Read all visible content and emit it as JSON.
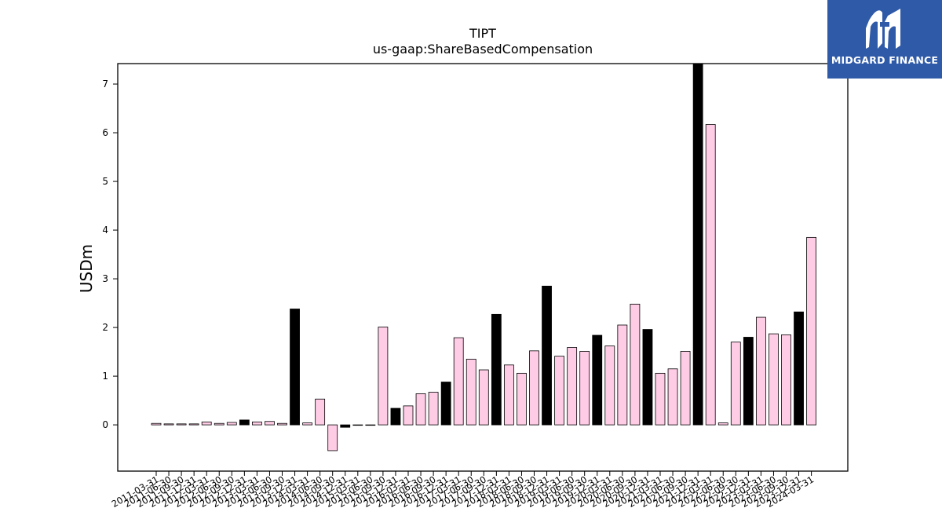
{
  "logo": {
    "text": "MIDGARD FINANCE",
    "background": "#2f5aa8"
  },
  "colors": {
    "bar_pink": "#ffcce6",
    "bar_black": "#000000",
    "edge": "#000000"
  },
  "chart_data": {
    "type": "bar",
    "title": "TIPT",
    "subtitle": "us-gaap:ShareBasedCompensation",
    "ylabel": "USDm",
    "xlabel": "",
    "ylim": [
      -0.95,
      7.42
    ],
    "yticks": [
      0,
      1,
      2,
      3,
      4,
      5,
      6,
      7
    ],
    "categories": [
      "2011-03-31",
      "2011-06-30",
      "2011-09-30",
      "2011-12-31",
      "2012-03-31",
      "2012-06-30",
      "2012-09-30",
      "2012-12-31",
      "2013-03-31",
      "2013-06-30",
      "2013-09-30",
      "2013-12-31",
      "2014-03-31",
      "2014-06-30",
      "2014-09-30",
      "2014-12-31",
      "2015-03-31",
      "2015-06-30",
      "2015-09-30",
      "2015-12-31",
      "2016-03-31",
      "2016-06-30",
      "2016-09-30",
      "2016-12-31",
      "2017-03-31",
      "2017-06-30",
      "2017-09-30",
      "2017-12-31",
      "2018-03-31",
      "2018-06-30",
      "2018-09-30",
      "2018-12-31",
      "2019-03-31",
      "2019-06-30",
      "2019-09-30",
      "2019-12-31",
      "2020-03-31",
      "2020-06-30",
      "2020-09-30",
      "2020-12-31",
      "2021-03-31",
      "2021-06-30",
      "2021-09-30",
      "2021-12-31",
      "2022-03-31",
      "2022-06-30",
      "2022-09-30",
      "2022-12-31",
      "2023-03-31",
      "2023-06-30",
      "2023-09-30",
      "2023-12-31",
      "2024-03-31"
    ],
    "values": [
      0.03,
      0.02,
      0.02,
      0.02,
      0.06,
      0.03,
      0.05,
      0.1,
      0.06,
      0.07,
      0.03,
      2.38,
      0.04,
      0.53,
      -0.53,
      -0.05,
      0.0,
      0.0,
      2.01,
      0.34,
      0.39,
      0.64,
      0.67,
      0.88,
      1.79,
      1.35,
      1.13,
      2.27,
      1.23,
      1.06,
      1.52,
      2.85,
      1.41,
      1.59,
      1.51,
      1.84,
      1.62,
      2.05,
      2.48,
      1.96,
      1.06,
      1.15,
      1.51,
      7.42,
      6.17,
      0.04,
      1.7,
      1.8,
      2.21,
      1.87,
      1.85,
      2.32,
      3.85
    ],
    "highlight": [
      false,
      false,
      false,
      false,
      false,
      false,
      false,
      true,
      false,
      false,
      false,
      true,
      false,
      false,
      false,
      true,
      false,
      false,
      false,
      true,
      false,
      false,
      false,
      true,
      false,
      false,
      false,
      true,
      false,
      false,
      false,
      true,
      false,
      false,
      false,
      true,
      false,
      false,
      false,
      true,
      false,
      false,
      false,
      true,
      false,
      false,
      false,
      true,
      false,
      false,
      false,
      true,
      false
    ]
  }
}
